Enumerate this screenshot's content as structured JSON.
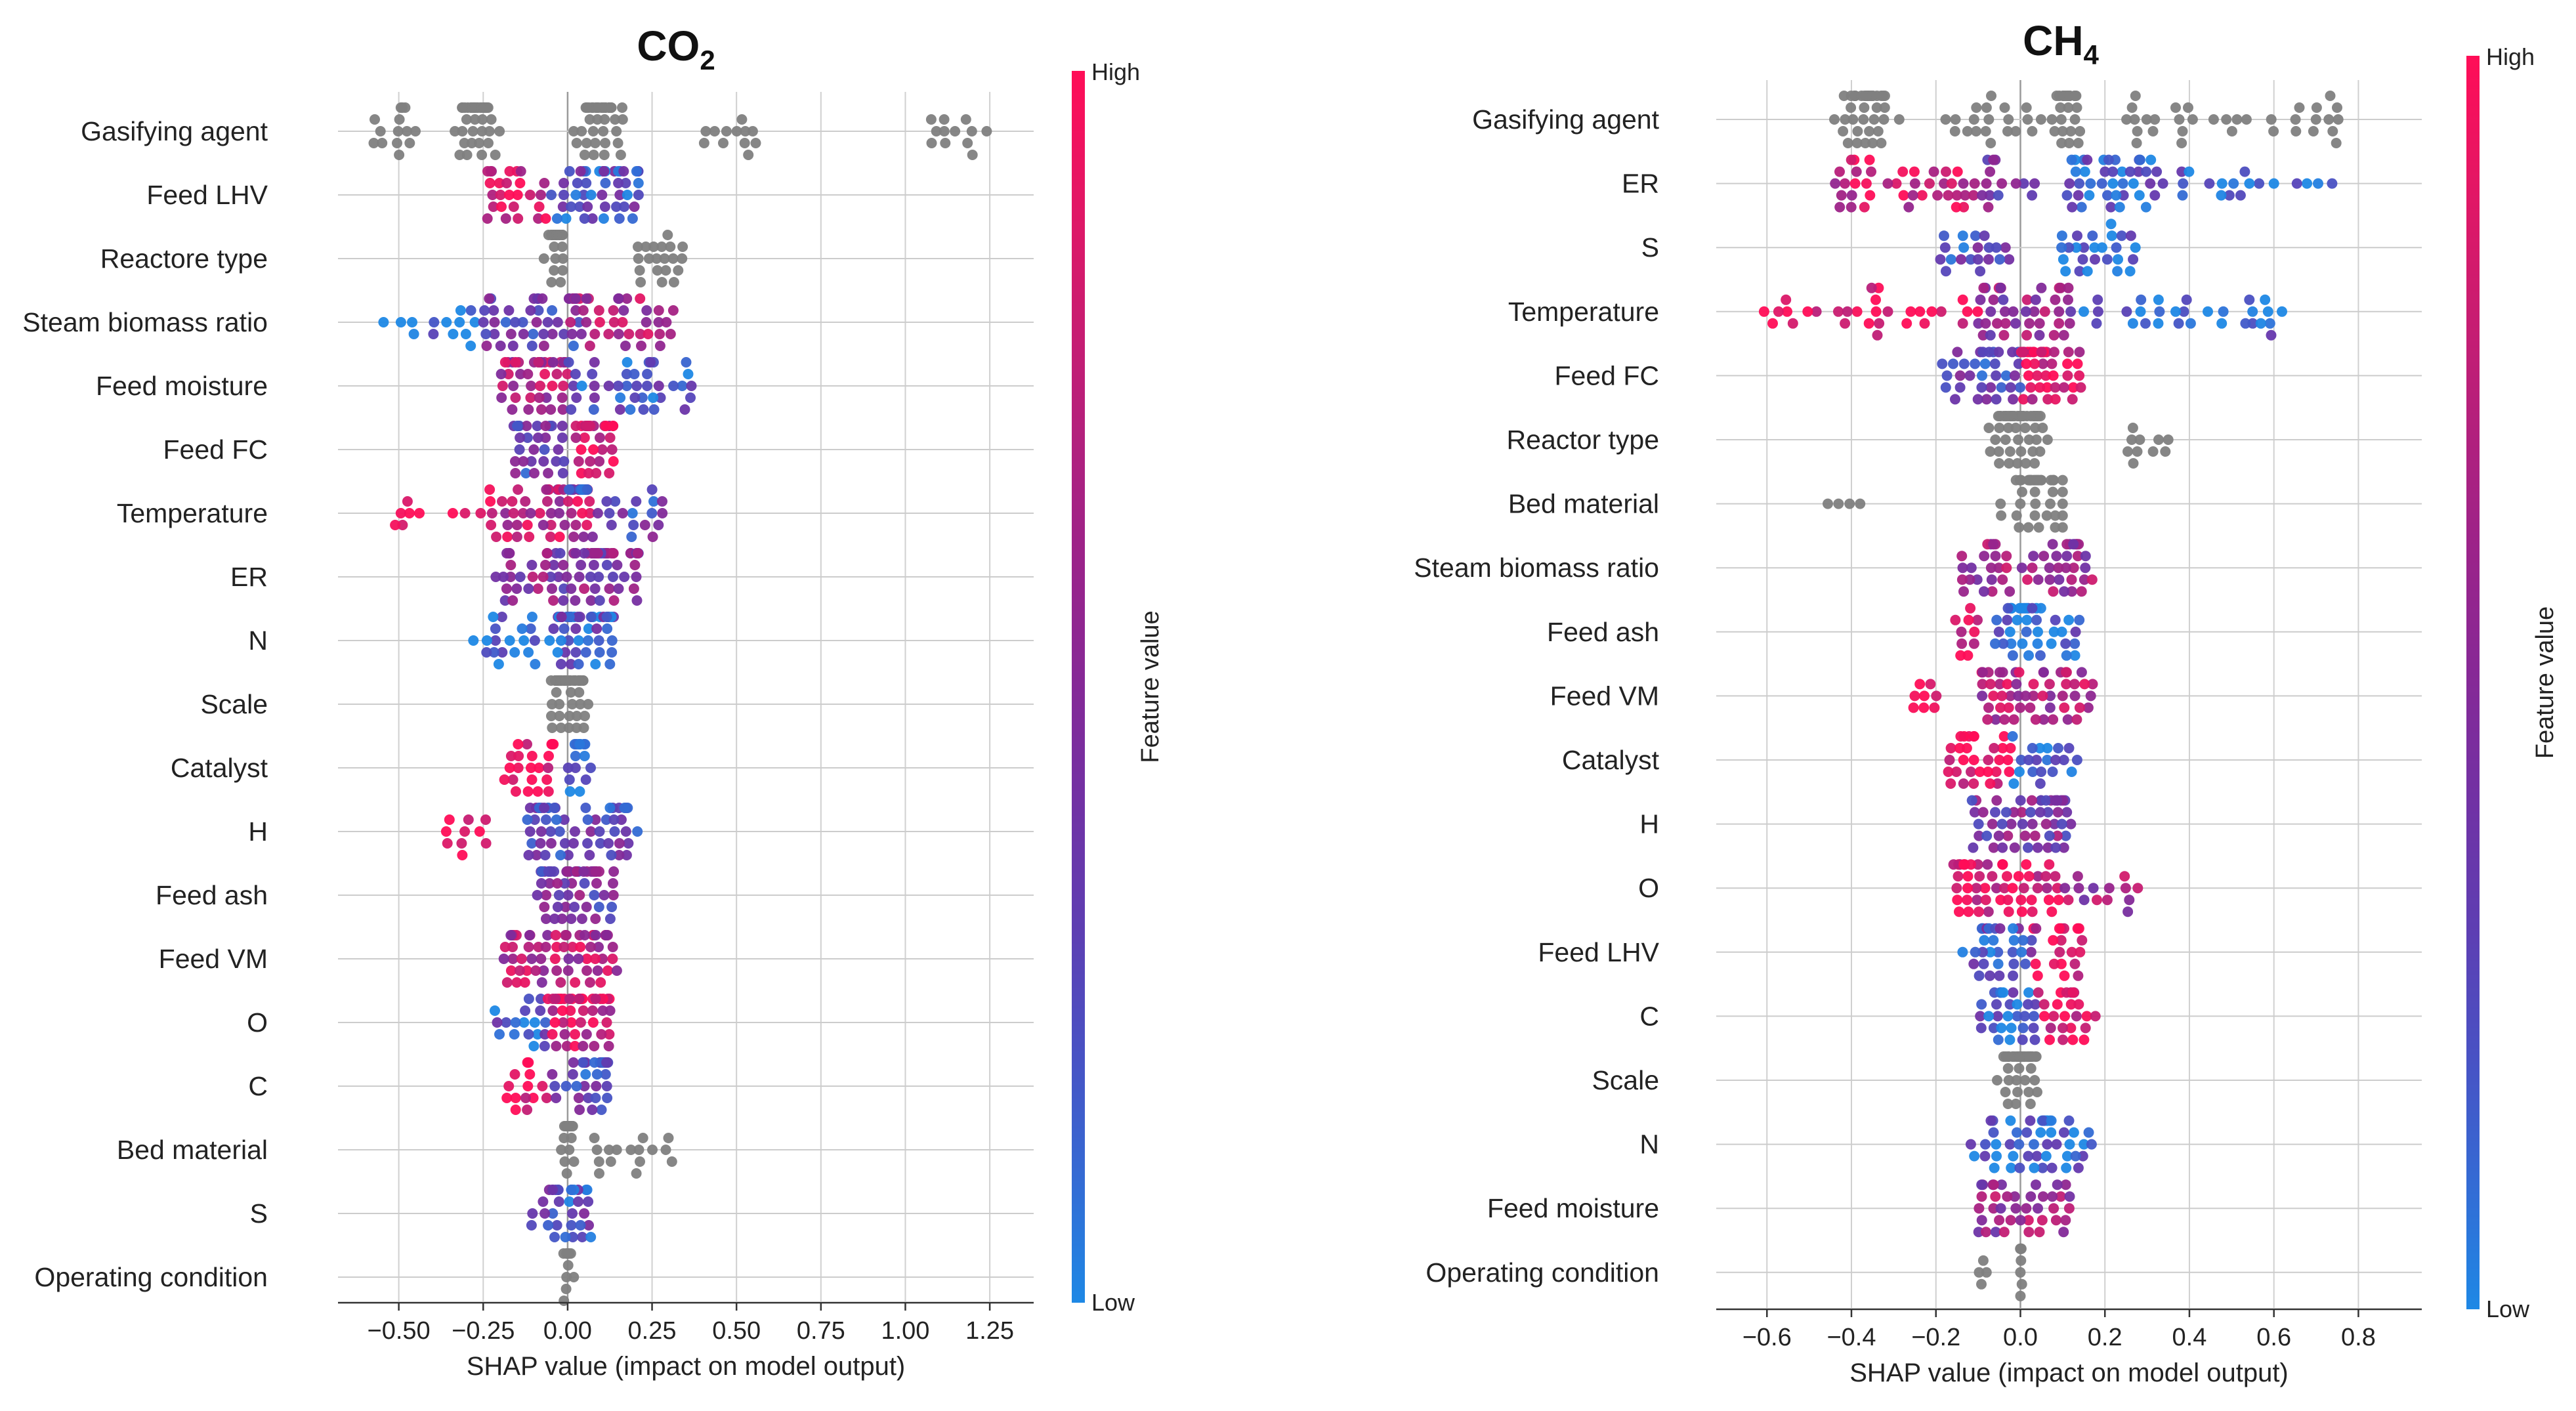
{
  "colors": {
    "low": "#1e88e5",
    "high": "#ff0d57",
    "categorical": "#808080",
    "gridline": "#d0d0d0"
  },
  "colorbar": {
    "high_label": "High",
    "low_label": "Low",
    "title": "Feature value"
  },
  "chart_data": [
    {
      "type": "scatter",
      "subtype": "shap-beeswarm",
      "title": "CO",
      "title_subscript": "2",
      "xlabel": "SHAP value (impact on model output)",
      "xlim": [
        -0.68,
        1.38
      ],
      "xticks": [
        -0.5,
        -0.25,
        0.0,
        0.25,
        0.5,
        0.75,
        1.0,
        1.25
      ],
      "xtick_labels": [
        "−0.50",
        "−0.25",
        "0.00",
        "0.25",
        "0.50",
        "0.75",
        "1.00",
        "1.25"
      ],
      "features": [
        {
          "name": "Gasifying agent",
          "categorical": true,
          "range": [
            -0.6,
            1.27
          ],
          "groups": [
            {
              "from": -0.6,
              "to": -0.45,
              "n": 14
            },
            {
              "from": -0.45,
              "to": -0.12,
              "n": 44,
              "peak": -0.27
            },
            {
              "from": -0.07,
              "to": 0.3,
              "n": 38,
              "peak": 0.09
            },
            {
              "from": 0.4,
              "to": 0.56,
              "n": 12
            },
            {
              "from": 1.06,
              "to": 1.27,
              "n": 12
            }
          ]
        },
        {
          "name": "Feed LHV",
          "range": [
            -0.24,
            0.22
          ],
          "groups": [
            {
              "from": -0.24,
              "to": -0.05,
              "n": 26,
              "tone": 0.85
            },
            {
              "from": -0.05,
              "to": 0.22,
              "n": 46,
              "tone": 0.25
            }
          ]
        },
        {
          "name": "Reactore type",
          "categorical": true,
          "range": [
            -0.11,
            0.35
          ],
          "groups": [
            {
              "from": -0.11,
              "to": 0.05,
              "n": 30,
              "peak": -0.04
            },
            {
              "from": 0.2,
              "to": 0.35,
              "n": 20
            }
          ]
        },
        {
          "name": "Steam biomass ratio",
          "range": [
            -0.57,
            0.32
          ],
          "groups": [
            {
              "from": -0.57,
              "to": -0.25,
              "n": 14,
              "tone": 0.05
            },
            {
              "from": -0.25,
              "to": 0.05,
              "n": 40,
              "tone": 0.35
            },
            {
              "from": 0.0,
              "to": 0.32,
              "n": 40,
              "tone": 0.7
            }
          ]
        },
        {
          "name": "Feed moisture",
          "range": [
            -0.2,
            0.38
          ],
          "groups": [
            {
              "from": -0.2,
              "to": 0.0,
              "n": 40,
              "tone": 0.7
            },
            {
              "from": 0.0,
              "to": 0.38,
              "n": 40,
              "tone": 0.2
            }
          ]
        },
        {
          "name": "Feed FC",
          "range": [
            -0.16,
            0.14
          ],
          "groups": [
            {
              "from": -0.16,
              "to": 0.0,
              "n": 30,
              "tone": 0.35
            },
            {
              "from": 0.0,
              "to": 0.14,
              "n": 30,
              "tone": 0.85
            }
          ]
        },
        {
          "name": "Temperature",
          "range": [
            -0.52,
            0.3
          ],
          "groups": [
            {
              "from": -0.52,
              "to": -0.2,
              "n": 14,
              "tone": 0.95
            },
            {
              "from": -0.2,
              "to": 0.08,
              "n": 44,
              "tone": 0.75
            },
            {
              "from": 0.0,
              "to": 0.3,
              "n": 34,
              "tone": 0.3
            }
          ]
        },
        {
          "name": "ER",
          "range": [
            -0.22,
            0.21
          ],
          "groups": [
            {
              "from": -0.22,
              "to": 0.21,
              "n": 80,
              "tone": 0.5
            }
          ]
        },
        {
          "name": "N",
          "range": [
            -0.28,
            0.14
          ],
          "groups": [
            {
              "from": -0.28,
              "to": -0.05,
              "n": 20,
              "tone": 0.1
            },
            {
              "from": -0.05,
              "to": 0.14,
              "n": 50,
              "tone": 0.2
            }
          ]
        },
        {
          "name": "Scale",
          "categorical": true,
          "range": [
            -0.18,
            0.14
          ],
          "groups": [
            {
              "from": -0.18,
              "to": 0.14,
              "n": 54,
              "peak": 0.0
            }
          ]
        },
        {
          "name": "Catalyst",
          "range": [
            -0.19,
            0.07
          ],
          "groups": [
            {
              "from": -0.19,
              "to": -0.03,
              "n": 22,
              "tone": 0.95
            },
            {
              "from": 0.0,
              "to": 0.07,
              "n": 16,
              "tone": 0.1
            }
          ]
        },
        {
          "name": "H",
          "range": [
            -0.37,
            0.21
          ],
          "groups": [
            {
              "from": -0.37,
              "to": -0.24,
              "n": 10,
              "tone": 0.95
            },
            {
              "from": -0.12,
              "to": 0.21,
              "n": 56,
              "tone": 0.3
            }
          ]
        },
        {
          "name": "Feed ash",
          "range": [
            -0.09,
            0.14
          ],
          "groups": [
            {
              "from": -0.09,
              "to": 0.14,
              "n": 56,
              "tone": 0.4
            }
          ]
        },
        {
          "name": "Feed VM",
          "range": [
            -0.19,
            0.15
          ],
          "groups": [
            {
              "from": -0.19,
              "to": 0.15,
              "n": 64,
              "tone": 0.7
            }
          ]
        },
        {
          "name": "O",
          "range": [
            -0.23,
            0.13
          ],
          "groups": [
            {
              "from": -0.23,
              "to": -0.06,
              "n": 18,
              "tone": 0.15
            },
            {
              "from": -0.06,
              "to": 0.13,
              "n": 44,
              "tone": 0.8
            }
          ]
        },
        {
          "name": "C",
          "range": [
            -0.19,
            0.12
          ],
          "groups": [
            {
              "from": -0.19,
              "to": -0.05,
              "n": 14,
              "tone": 0.9
            },
            {
              "from": -0.05,
              "to": 0.12,
              "n": 34,
              "tone": 0.3
            }
          ]
        },
        {
          "name": "Bed material",
          "categorical": true,
          "range": [
            -0.04,
            0.32
          ],
          "groups": [
            {
              "from": -0.04,
              "to": 0.06,
              "n": 24,
              "peak": 0.0
            },
            {
              "from": 0.06,
              "to": 0.32,
              "n": 16
            }
          ]
        },
        {
          "name": "S",
          "range": [
            -0.11,
            0.07
          ],
          "groups": [
            {
              "from": -0.11,
              "to": 0.07,
              "n": 34,
              "tone": 0.25
            }
          ]
        },
        {
          "name": "Operating condition",
          "categorical": true,
          "range": [
            -0.05,
            0.02
          ],
          "groups": [
            {
              "from": -0.05,
              "to": 0.02,
              "n": 14,
              "peak": 0.0
            }
          ]
        }
      ]
    },
    {
      "type": "scatter",
      "subtype": "shap-beeswarm",
      "title": "CH",
      "title_subscript": "4",
      "xlabel": "SHAP value (impact on model output)",
      "xlim": [
        -0.72,
        0.95
      ],
      "xticks": [
        -0.6,
        -0.4,
        -0.2,
        0.0,
        0.2,
        0.4,
        0.6,
        0.8
      ],
      "xtick_labels": [
        "−0.6",
        "−0.4",
        "−0.2",
        "0.0",
        "0.2",
        "0.4",
        "0.6",
        "0.8"
      ],
      "features": [
        {
          "name": "Gasifying agent",
          "categorical": true,
          "range": [
            -0.55,
            0.88
          ],
          "groups": [
            {
              "from": -0.55,
              "to": -0.2,
              "n": 44,
              "peak": -0.37
            },
            {
              "from": -0.2,
              "to": 0.05,
              "n": 20
            },
            {
              "from": 0.05,
              "to": 0.25,
              "n": 26,
              "peak": 0.11
            },
            {
              "from": 0.25,
              "to": 0.78,
              "n": 34
            }
          ]
        },
        {
          "name": "ER",
          "range": [
            -0.46,
            0.79
          ],
          "groups": [
            {
              "from": -0.46,
              "to": -0.1,
              "n": 40,
              "tone": 0.8
            },
            {
              "from": -0.1,
              "to": 0.05,
              "n": 14,
              "tone": 0.4
            },
            {
              "from": 0.1,
              "to": 0.4,
              "n": 46,
              "tone": 0.15
            },
            {
              "from": 0.4,
              "to": 0.79,
              "n": 14,
              "tone": 0.05
            }
          ]
        },
        {
          "name": "S",
          "range": [
            -0.19,
            0.28
          ],
          "groups": [
            {
              "from": -0.19,
              "to": -0.02,
              "n": 20,
              "tone": 0.25
            },
            {
              "from": 0.08,
              "to": 0.28,
              "n": 26,
              "tone": 0.1
            }
          ]
        },
        {
          "name": "Temperature",
          "range": [
            -0.66,
            0.64
          ],
          "groups": [
            {
              "from": -0.66,
              "to": -0.1,
              "n": 30,
              "tone": 0.95
            },
            {
              "from": -0.1,
              "to": 0.12,
              "n": 40,
              "tone": 0.55
            },
            {
              "from": 0.12,
              "to": 0.64,
              "n": 30,
              "tone": 0.1
            }
          ]
        },
        {
          "name": "Feed FC",
          "range": [
            -0.19,
            0.15
          ],
          "groups": [
            {
              "from": -0.19,
              "to": 0.0,
              "n": 34,
              "tone": 0.3
            },
            {
              "from": 0.0,
              "to": 0.15,
              "n": 40,
              "tone": 0.85
            }
          ]
        },
        {
          "name": "Reactor type",
          "categorical": true,
          "range": [
            -0.15,
            0.36
          ],
          "groups": [
            {
              "from": -0.15,
              "to": 0.16,
              "n": 54,
              "peak": 0.0
            },
            {
              "from": 0.25,
              "to": 0.36,
              "n": 10
            }
          ]
        },
        {
          "name": "Bed material",
          "categorical": true,
          "range": [
            -0.47,
            0.1
          ],
          "groups": [
            {
              "from": -0.47,
              "to": -0.36,
              "n": 4
            },
            {
              "from": -0.26,
              "to": 0.1,
              "n": 40,
              "peak": 0.04
            }
          ]
        },
        {
          "name": "Steam biomass ratio",
          "range": [
            -0.14,
            0.17
          ],
          "groups": [
            {
              "from": -0.14,
              "to": 0.17,
              "n": 54,
              "tone": 0.6
            }
          ]
        },
        {
          "name": "Feed ash",
          "range": [
            -0.17,
            0.14
          ],
          "groups": [
            {
              "from": -0.17,
              "to": -0.1,
              "n": 10,
              "tone": 0.9
            },
            {
              "from": -0.06,
              "to": 0.14,
              "n": 40,
              "tone": 0.1
            }
          ]
        },
        {
          "name": "Feed VM",
          "range": [
            -0.26,
            0.18
          ],
          "groups": [
            {
              "from": -0.26,
              "to": -0.18,
              "n": 8,
              "tone": 0.95
            },
            {
              "from": -0.1,
              "to": 0.18,
              "n": 54,
              "tone": 0.7
            }
          ]
        },
        {
          "name": "Catalyst",
          "range": [
            -0.18,
            0.14
          ],
          "groups": [
            {
              "from": -0.18,
              "to": -0.02,
              "n": 30,
              "tone": 0.95
            },
            {
              "from": -0.02,
              "to": 0.14,
              "n": 20,
              "tone": 0.1
            }
          ]
        },
        {
          "name": "H",
          "range": [
            -0.12,
            0.12
          ],
          "groups": [
            {
              "from": -0.12,
              "to": 0.12,
              "n": 54,
              "tone": 0.45
            }
          ]
        },
        {
          "name": "O",
          "range": [
            -0.16,
            0.28
          ],
          "groups": [
            {
              "from": -0.16,
              "to": 0.1,
              "n": 54,
              "tone": 0.85
            },
            {
              "from": 0.1,
              "to": 0.28,
              "n": 14,
              "tone": 0.6
            }
          ]
        },
        {
          "name": "Feed LHV",
          "range": [
            -0.14,
            0.15
          ],
          "groups": [
            {
              "from": -0.14,
              "to": 0.03,
              "n": 30,
              "tone": 0.25
            },
            {
              "from": 0.03,
              "to": 0.15,
              "n": 20,
              "tone": 0.85
            }
          ]
        },
        {
          "name": "C",
          "range": [
            -0.1,
            0.18
          ],
          "groups": [
            {
              "from": -0.1,
              "to": 0.04,
              "n": 30,
              "tone": 0.15
            },
            {
              "from": 0.04,
              "to": 0.18,
              "n": 24,
              "tone": 0.9
            }
          ]
        },
        {
          "name": "Scale",
          "categorical": true,
          "range": [
            -0.08,
            0.14
          ],
          "groups": [
            {
              "from": -0.08,
              "to": 0.14,
              "n": 40,
              "peak": 0.0
            }
          ]
        },
        {
          "name": "N",
          "range": [
            -0.12,
            0.18
          ],
          "groups": [
            {
              "from": -0.12,
              "to": 0.18,
              "n": 50,
              "tone": 0.12
            }
          ]
        },
        {
          "name": "Feed moisture",
          "range": [
            -0.1,
            0.12
          ],
          "groups": [
            {
              "from": -0.1,
              "to": 0.12,
              "n": 40,
              "tone": 0.6
            }
          ]
        },
        {
          "name": "Operating condition",
          "categorical": true,
          "range": [
            -0.1,
            0.01
          ],
          "groups": [
            {
              "from": -0.1,
              "to": -0.05,
              "n": 4
            },
            {
              "from": -0.01,
              "to": 0.01,
              "n": 8,
              "peak": 0.0
            }
          ]
        }
      ]
    }
  ]
}
